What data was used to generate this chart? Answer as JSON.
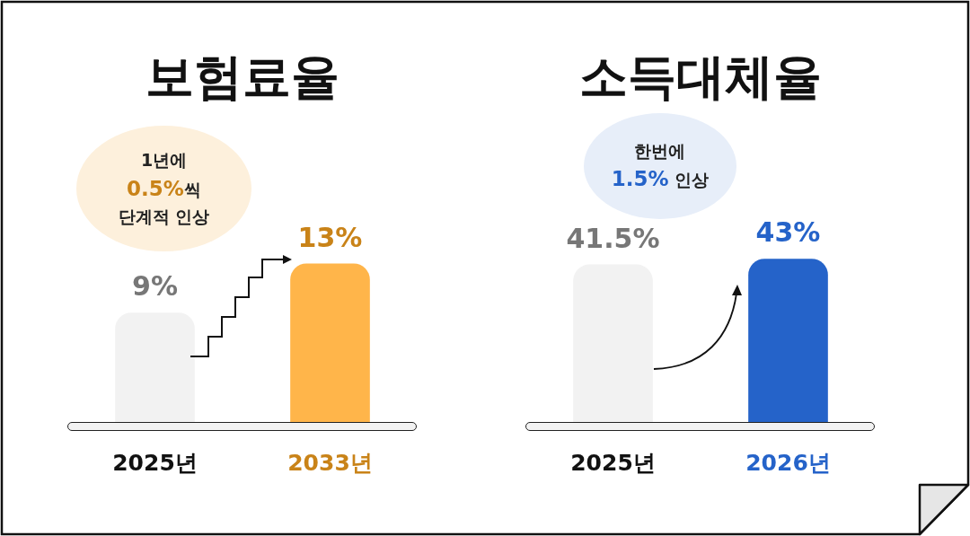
{
  "chart_data": [
    {
      "type": "bar",
      "title": "보험료율",
      "categories": [
        "2025년",
        "2033년"
      ],
      "values": [
        9,
        13
      ],
      "value_labels": [
        "9%",
        "13%"
      ],
      "colors": [
        "#f2f2f2",
        "#ffb54a"
      ],
      "annotations": [
        "1년에\n0.5%씩\n단계적 인상"
      ]
    },
    {
      "type": "bar",
      "title": "소득대체율",
      "categories": [
        "2025년",
        "2026년"
      ],
      "values": [
        41.5,
        43
      ],
      "value_labels": [
        "41.5%",
        "43%"
      ],
      "colors": [
        "#f2f2f2",
        "#2563c9"
      ],
      "annotations": [
        "한번에\n1.5% 인상"
      ]
    }
  ]
}
